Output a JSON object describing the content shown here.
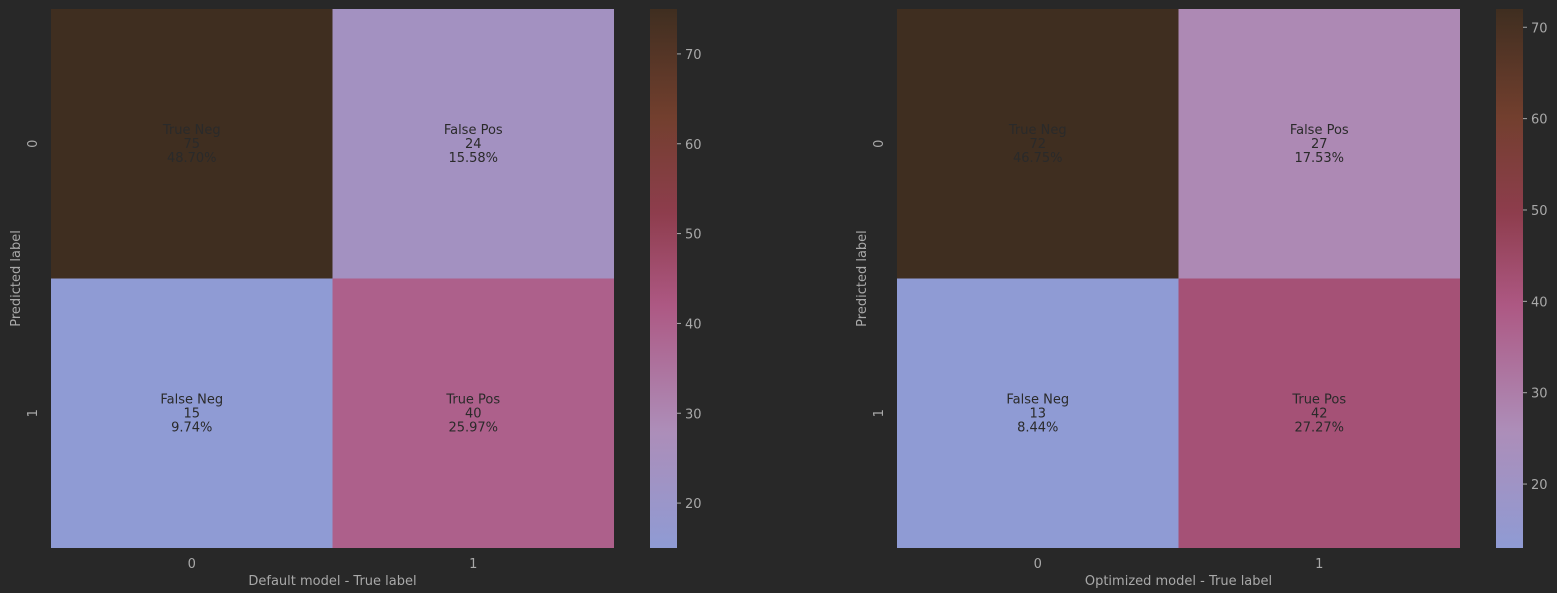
{
  "colors": {
    "background": "#282828",
    "axis_text": "#a9a9a9",
    "cell_text": "#2a2a2a",
    "cmap": [
      {
        "value": 0.0,
        "color": "#8f9bd4"
      },
      {
        "value": 0.22,
        "color": "#ad8db8"
      },
      {
        "value": 0.45,
        "color": "#ad5883"
      },
      {
        "value": 0.62,
        "color": "#8e3d4d"
      },
      {
        "value": 0.8,
        "color": "#723f2e"
      },
      {
        "value": 1.0,
        "color": "#3f2e20"
      }
    ]
  },
  "chart_data": [
    {
      "type": "heatmap",
      "xlabel": "Default model - True label",
      "ylabel": "Predicted label",
      "x_ticks": [
        "0",
        "1"
      ],
      "y_ticks": [
        "0",
        "1"
      ],
      "cells": [
        [
          {
            "label": "True Neg",
            "count": "75",
            "percent": "48.70%",
            "value": 75
          },
          {
            "label": "False Pos",
            "count": "24",
            "percent": "15.58%",
            "value": 24
          }
        ],
        [
          {
            "label": "False Neg",
            "count": "15",
            "percent": "9.74%",
            "value": 15
          },
          {
            "label": "True Pos",
            "count": "40",
            "percent": "25.97%",
            "value": 40
          }
        ]
      ],
      "colorbar": {
        "min": 15,
        "max": 75,
        "ticks": [
          "20",
          "30",
          "40",
          "50",
          "60",
          "70"
        ]
      }
    },
    {
      "type": "heatmap",
      "xlabel": "Optimized model - True label",
      "ylabel": "Predicted label",
      "x_ticks": [
        "0",
        "1"
      ],
      "y_ticks": [
        "0",
        "1"
      ],
      "cells": [
        [
          {
            "label": "True Neg",
            "count": "72",
            "percent": "46.75%",
            "value": 72
          },
          {
            "label": "False Pos",
            "count": "27",
            "percent": "17.53%",
            "value": 27
          }
        ],
        [
          {
            "label": "False Neg",
            "count": "13",
            "percent": "8.44%",
            "value": 13
          },
          {
            "label": "True Pos",
            "count": "42",
            "percent": "27.27%",
            "value": 42
          }
        ]
      ],
      "colorbar": {
        "min": 13,
        "max": 72,
        "ticks": [
          "20",
          "30",
          "40",
          "50",
          "60",
          "70"
        ]
      }
    }
  ]
}
